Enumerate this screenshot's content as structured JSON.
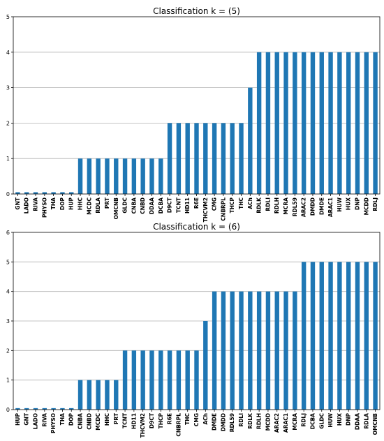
{
  "chart_data": [
    {
      "type": "bar",
      "title": "Classification k = (5)",
      "ylim": [
        0,
        5
      ],
      "yticks": [
        0,
        1,
        2,
        3,
        4,
        5
      ],
      "grid": "horizontal",
      "color": "#1f77b4",
      "categories": [
        "GNT",
        "LADO",
        "RIVA",
        "PHYSO",
        "THA",
        "DOP",
        "HUP",
        "HHC",
        "MCDC",
        "RDLA",
        "PRT",
        "OMCNB",
        "GLDC",
        "CNBA",
        "CNBD",
        "DDAA",
        "DCBA",
        "D9CT",
        "TCNT",
        "HD11",
        "R6E",
        "THCVM2",
        "CMG",
        "CNBRPL",
        "THCP",
        "THC",
        "ACh",
        "RDLK",
        "RDLI",
        "RDLH",
        "MCRA",
        "RDL59",
        "ARAC2",
        "DMDD",
        "DMDE",
        "ARAC1",
        "HUW",
        "HUX",
        "DNP",
        "MCDD",
        "RDLJ"
      ],
      "values": [
        0.05,
        0.05,
        0.05,
        0.05,
        0.05,
        0.05,
        0.05,
        1,
        1,
        1,
        1,
        1,
        1,
        1,
        1,
        1,
        1,
        2,
        2,
        2,
        2,
        2,
        2,
        2,
        2,
        2,
        3,
        4,
        4,
        4,
        4,
        4,
        4,
        4,
        4,
        4,
        4,
        4,
        4,
        4,
        4
      ]
    },
    {
      "type": "bar",
      "title": "Classification k = (6)",
      "ylim": [
        0,
        6
      ],
      "yticks": [
        0,
        1,
        2,
        3,
        4,
        5,
        6
      ],
      "grid": "horizontal",
      "color": "#1f77b4",
      "categories": [
        "HUP",
        "GNT",
        "LADO",
        "RIVA",
        "PHYSO",
        "THA",
        "DOP",
        "CNBA",
        "CNBD",
        "MCDC",
        "HHC",
        "PRT",
        "TCNT",
        "HD11",
        "THCVM2",
        "D9CT",
        "THCP",
        "R6E",
        "CNBRPL",
        "THC",
        "CMG",
        "ACh",
        "DMDE",
        "DMDD",
        "RDL59",
        "RDLI",
        "RDLK",
        "RDLH",
        "MCDD",
        "ARAC2",
        "ARAC1",
        "MCRA",
        "RDLJ",
        "DCBA",
        "GLDC",
        "HUW",
        "HUX",
        "DNP",
        "DDAA",
        "RDLA",
        "OMCNB"
      ],
      "values": [
        0.05,
        0.05,
        0.05,
        0.05,
        0.05,
        0.05,
        0.05,
        1,
        1,
        1,
        1,
        1,
        2,
        2,
        2,
        2,
        2,
        2,
        2,
        2,
        2,
        3,
        4,
        4,
        4,
        4,
        4,
        4,
        4,
        4,
        4,
        4,
        5,
        5,
        5,
        5,
        5,
        5,
        5,
        5,
        5
      ]
    }
  ]
}
